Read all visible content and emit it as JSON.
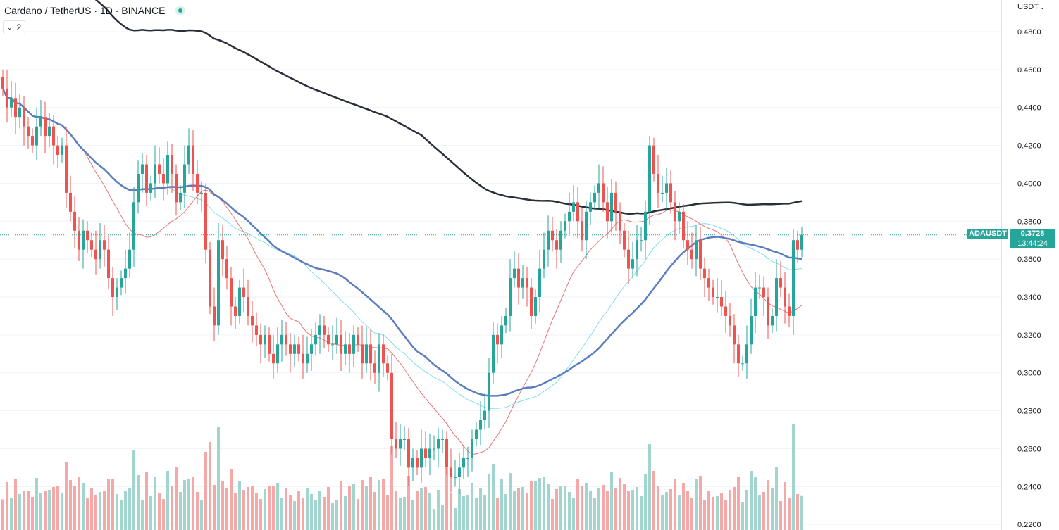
{
  "header": {
    "title": "Cardano / TetherUS · 1D · BINANCE",
    "indicator_count": "2"
  },
  "price_axis": {
    "currency": "USDT",
    "ticks": [
      "0.4800",
      "0.4600",
      "0.4400",
      "0.4200",
      "0.4000",
      "0.3800",
      "0.3600",
      "0.3400",
      "0.3200",
      "0.3000",
      "0.2800",
      "0.2600",
      "0.2400",
      "0.2200"
    ]
  },
  "last_price": {
    "symbol": "ADAUSDT",
    "price": "0.3728",
    "countdown": "13:44:24",
    "value": 0.3728
  },
  "colors": {
    "up": "#26a69a",
    "down": "#ef5350",
    "vol_up": "#a3d5cf",
    "vol_down": "#f4a9a8",
    "ma_long": "#2a2e39",
    "ma_mid": "#5b7cbf",
    "ma_light": "#80deea",
    "ma_short": "#e57373"
  },
  "chart_data": {
    "type": "candlestick",
    "ylim": [
      0.22,
      0.49
    ],
    "closes": [
      0.45,
      0.44,
      0.445,
      0.435,
      0.44,
      0.43,
      0.425,
      0.42,
      0.43,
      0.435,
      0.425,
      0.43,
      0.42,
      0.415,
      0.42,
      0.395,
      0.385,
      0.375,
      0.365,
      0.375,
      0.37,
      0.365,
      0.36,
      0.37,
      0.365,
      0.35,
      0.34,
      0.345,
      0.35,
      0.355,
      0.365,
      0.39,
      0.405,
      0.41,
      0.395,
      0.4,
      0.41,
      0.405,
      0.4,
      0.415,
      0.405,
      0.39,
      0.395,
      0.41,
      0.42,
      0.405,
      0.395,
      0.395,
      0.365,
      0.335,
      0.325,
      0.37,
      0.36,
      0.35,
      0.335,
      0.33,
      0.345,
      0.34,
      0.33,
      0.325,
      0.32,
      0.315,
      0.32,
      0.31,
      0.305,
      0.315,
      0.32,
      0.315,
      0.31,
      0.315,
      0.31,
      0.305,
      0.31,
      0.315,
      0.32,
      0.325,
      0.32,
      0.315,
      0.315,
      0.32,
      0.31,
      0.315,
      0.31,
      0.32,
      0.315,
      0.305,
      0.315,
      0.305,
      0.3,
      0.315,
      0.305,
      0.3,
      0.265,
      0.26,
      0.265,
      0.265,
      0.25,
      0.255,
      0.25,
      0.26,
      0.255,
      0.26,
      0.26,
      0.265,
      0.265,
      0.25,
      0.245,
      0.245,
      0.25,
      0.255,
      0.255,
      0.265,
      0.27,
      0.275,
      0.28,
      0.3,
      0.32,
      0.315,
      0.325,
      0.33,
      0.35,
      0.355,
      0.345,
      0.35,
      0.345,
      0.33,
      0.34,
      0.355,
      0.365,
      0.375,
      0.37,
      0.365,
      0.375,
      0.38,
      0.385,
      0.39,
      0.38,
      0.37,
      0.385,
      0.39,
      0.395,
      0.4,
      0.39,
      0.38,
      0.395,
      0.385,
      0.375,
      0.365,
      0.355,
      0.36,
      0.37,
      0.37,
      0.385,
      0.42,
      0.405,
      0.395,
      0.395,
      0.4,
      0.39,
      0.38,
      0.385,
      0.37,
      0.365,
      0.36,
      0.37,
      0.355,
      0.35,
      0.345,
      0.34,
      0.34,
      0.335,
      0.33,
      0.325,
      0.315,
      0.305,
      0.305,
      0.315,
      0.33,
      0.345,
      0.345,
      0.34,
      0.325,
      0.33,
      0.35,
      0.345,
      0.335,
      0.33,
      0.37,
      0.365,
      0.3728
    ],
    "volume_scale": 0.75,
    "ma_long_window": 100,
    "ma_mid_window": 50,
    "ma_light_window": 40,
    "ma_short_window": 20
  }
}
